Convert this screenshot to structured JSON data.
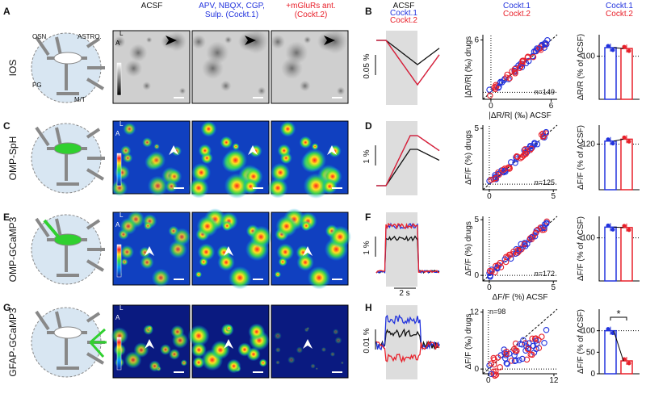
{
  "header": {
    "acsf": "ACSF",
    "cockt1": [
      "APV, NBQX, CGP,",
      "Sulp. (Cockt.1)"
    ],
    "cockt2": [
      "+mGluRs ant.",
      "(Cockt.2)"
    ]
  },
  "schematic_labels": {
    "osn": "OSN",
    "astro": "ASTRO.",
    "pg": "PG",
    "mt": "M/T"
  },
  "orientation": {
    "l": "L",
    "a": "A"
  },
  "trace_legend": [
    "ACSF",
    "Cockt.1",
    "Cockt.2"
  ],
  "scatter_legend": [
    "Cockt.1",
    "Cockt.2"
  ],
  "bar_legend": [
    "Cockt.1",
    "Cockt.2"
  ],
  "colors": {
    "acsf": "#111111",
    "cockt1": "#2233dd",
    "cockt2": "#e8202a"
  },
  "time_scale": "2 s",
  "rows": [
    {
      "letter": "A",
      "label": "IOS",
      "panel_letter": "B",
      "trace_scale": "0.05 %",
      "scatter": {
        "ylabel": "|ΔR/R| (‰) drugs",
        "xlabel": "|ΔR/R| (‰) ACSF",
        "xlim": [
          -0.8,
          6.6
        ],
        "ylim": [
          -0.8,
          6.6
        ],
        "xticks": [
          0,
          6
        ],
        "yticks": [
          6
        ],
        "n": "n=149"
      },
      "bars": {
        "ylabel": "ΔR/R (% of ACSF)",
        "ylim": [
          0,
          150
        ],
        "yticks": [
          100
        ],
        "values": [
          120,
          118
        ]
      }
    },
    {
      "letter": "C",
      "label": "OMP-SpH",
      "panel_letter": "D",
      "trace_scale": "1 %",
      "scatter": {
        "ylabel": "ΔF/F (%) drugs",
        "xlim": [
          -0.5,
          5.3
        ],
        "ylim": [
          -0.5,
          5.3
        ],
        "xticks": [
          0,
          5
        ],
        "yticks": [
          5
        ],
        "n": "n=125"
      },
      "bars": {
        "ylabel": "ΔF/F (% of ACSF)",
        "ylim": [
          0,
          170
        ],
        "yticks": [
          120
        ],
        "values": [
          128,
          133
        ]
      }
    },
    {
      "letter": "E",
      "label": "OMP-GCaMP3",
      "panel_letter": "F",
      "trace_scale": "1 %",
      "scatter": {
        "ylabel": "ΔF/F (%) drugs",
        "xlabel": "ΔF/F (%) ACSF",
        "xlim": [
          -0.5,
          5.3
        ],
        "ylim": [
          -0.5,
          5.3
        ],
        "xticks": [
          0,
          5
        ],
        "yticks": [
          0,
          5
        ],
        "n": "n=172"
      },
      "bars": {
        "ylabel": "ΔF/F (% of ACSF)",
        "ylim": [
          0,
          150
        ],
        "yticks": [
          100
        ],
        "values": [
          125,
          124
        ]
      }
    },
    {
      "letter": "G",
      "label": "GFAP-GCaMP3",
      "panel_letter": "H",
      "trace_scale": "0.01 %",
      "scatter": {
        "ylabel": "ΔF/F (‰) drugs",
        "xlim": [
          -1,
          12.6
        ],
        "ylim": [
          -1,
          12.6
        ],
        "xticks": [
          0,
          12
        ],
        "yticks": [
          0,
          12
        ],
        "n": "n=98"
      },
      "bars": {
        "ylabel": "ΔF/F (% of ACSF)",
        "ylim": [
          0,
          150
        ],
        "yticks": [
          0,
          50,
          100
        ],
        "values": [
          100,
          30
        ],
        "significance": "*"
      }
    }
  ]
}
